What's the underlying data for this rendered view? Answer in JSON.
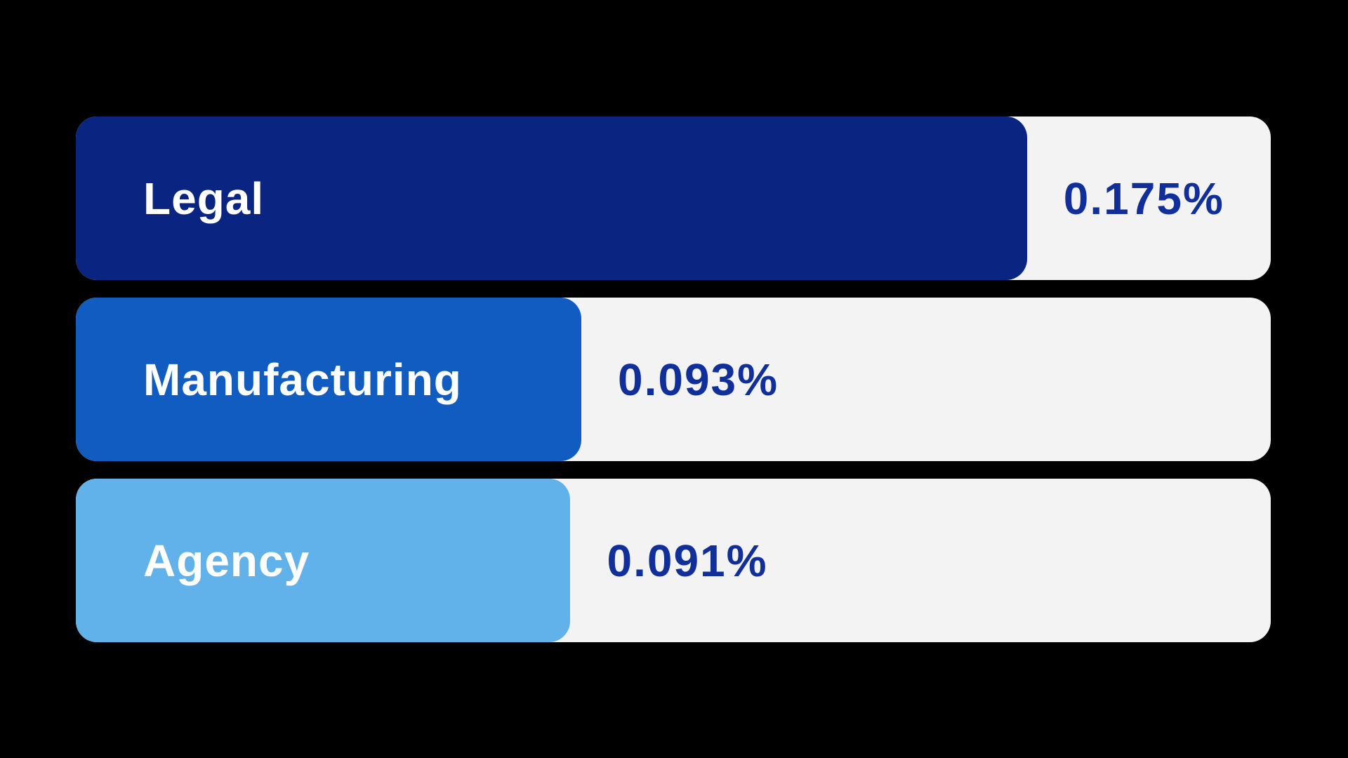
{
  "colors": {
    "background": "#000000",
    "track": "#f3f3f3",
    "label-text": "#ffffff",
    "value-text": "#112f9a"
  },
  "chart_data": {
    "type": "bar",
    "orientation": "horizontal",
    "title": "",
    "xlabel": "",
    "ylabel": "",
    "unit": "%",
    "categories": [
      "Legal",
      "Manufacturing",
      "Agency"
    ],
    "values": [
      0.175,
      0.093,
      0.091
    ],
    "legend": false,
    "gridlines": false,
    "axes_visible": false,
    "max_bar_fraction": 0.796,
    "rows": [
      {
        "label": "Legal",
        "value": 0.175,
        "value_label": "0.175%",
        "color": "#0a2481"
      },
      {
        "label": "Manufacturing",
        "value": 0.093,
        "value_label": "0.093%",
        "color": "#115cc1"
      },
      {
        "label": "Agency",
        "value": 0.091,
        "value_label": "0.091%",
        "color": "#61b1ea"
      }
    ]
  }
}
